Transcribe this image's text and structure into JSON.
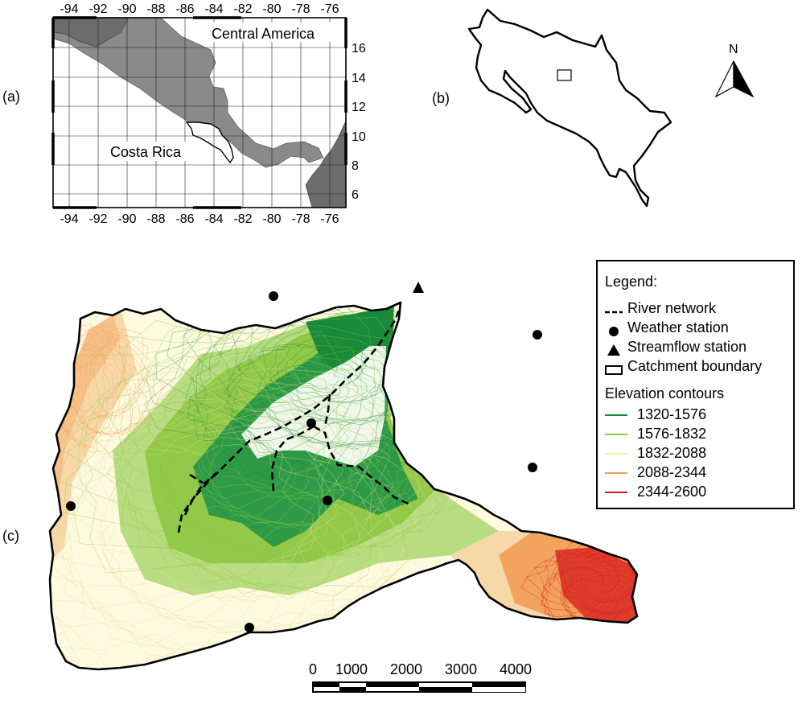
{
  "panel_labels": {
    "a": "(a)",
    "b": "(b)",
    "c": "(c)"
  },
  "inset_a": {
    "top_ticks": [
      "-94",
      "-92",
      "-90",
      "-88",
      "-86",
      "-84",
      "-82",
      "-80",
      "-78",
      "-76"
    ],
    "bottom_ticks": [
      "-94",
      "-92",
      "-90",
      "-88",
      "-86",
      "-84",
      "-82",
      "-80",
      "-78",
      "-76"
    ],
    "right_ticks": [
      "16",
      "14",
      "12",
      "10",
      "8",
      "6"
    ],
    "label_region": "Central America",
    "label_country": "Costa Rica",
    "land_color": "#808080",
    "dark_land_color": "#6e6e6e"
  },
  "inset_b": {
    "north_label": "N"
  },
  "legend": {
    "title": "Legend:",
    "items": [
      {
        "label": "River network",
        "symbol": "dashed-line"
      },
      {
        "label": "Weather station",
        "symbol": "circle"
      },
      {
        "label": "Streamflow station",
        "symbol": "triangle"
      },
      {
        "label": "Catchment boundary",
        "symbol": "rectangle"
      }
    ],
    "contour_title": "Elevation contours",
    "contours": [
      {
        "label": "1320-1576",
        "color": "#1a8a3a"
      },
      {
        "label": "1576-1832",
        "color": "#8cc63f"
      },
      {
        "label": "1832-2088",
        "color": "#f5f0b0"
      },
      {
        "label": "2088-2344",
        "color": "#f2a35e"
      },
      {
        "label": "2344-2600",
        "color": "#d7191c"
      }
    ]
  },
  "scale_bar": {
    "labels": [
      "0",
      "1000",
      "2000",
      "3000",
      "4000"
    ]
  }
}
